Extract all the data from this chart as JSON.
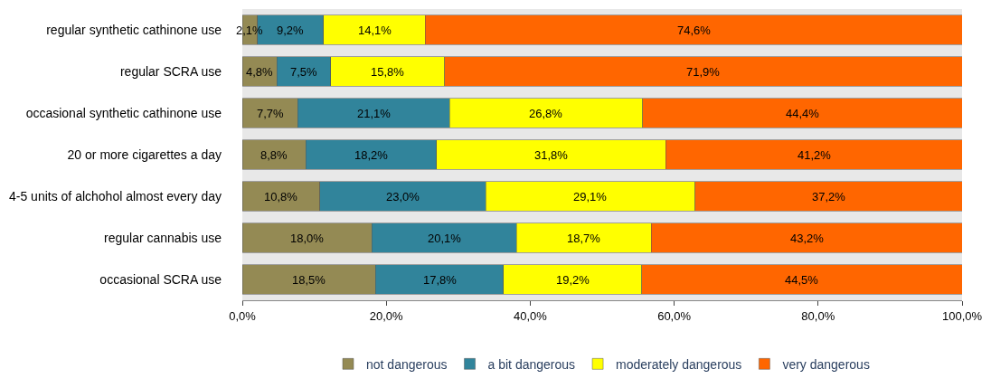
{
  "chart_data": {
    "type": "bar",
    "orientation": "horizontal",
    "stacked": true,
    "categories": [
      "regular synthetic cathinone use",
      "regular SCRA use",
      "occasional synthetic cathinone use",
      "20 or more cigarettes a day",
      "4-5 units of alchohol almost every day",
      "regular cannabis use",
      "occasional SCRA use"
    ],
    "series": [
      {
        "name": "not dangerous",
        "color": "#948a54",
        "values": [
          2.1,
          4.8,
          7.7,
          8.8,
          10.8,
          18.0,
          18.5
        ],
        "value_labels": [
          "2,1%",
          "4,8%",
          "7,7%",
          "8,8%",
          "10,8%",
          "18,0%",
          "18,5%"
        ]
      },
      {
        "name": "a bit dangerous",
        "color": "#31849b",
        "values": [
          9.2,
          7.5,
          21.1,
          18.2,
          23.0,
          20.1,
          17.8
        ],
        "value_labels": [
          "9,2%",
          "7,5%",
          "21,1%",
          "18,2%",
          "23,0%",
          "20,1%",
          "17,8%"
        ]
      },
      {
        "name": "moderately dangerous",
        "color": "#ffff00",
        "values": [
          14.1,
          15.8,
          26.8,
          31.8,
          29.1,
          18.7,
          19.2
        ],
        "value_labels": [
          "14,1%",
          "15,8%",
          "26,8%",
          "31,8%",
          "29,1%",
          "18,7%",
          "19,2%"
        ]
      },
      {
        "name": "very dangerous",
        "color": "#ff6600",
        "values": [
          74.6,
          71.9,
          44.4,
          41.2,
          37.2,
          43.2,
          44.5
        ],
        "value_labels": [
          "74,6%",
          "71,9%",
          "44,4%",
          "41,2%",
          "37,2%",
          "43,2%",
          "44,5%"
        ]
      }
    ],
    "xlim": [
      0,
      100
    ],
    "xticks": [
      {
        "value": 0,
        "label": "0,0%"
      },
      {
        "value": 20,
        "label": "20,0%"
      },
      {
        "value": 40,
        "label": "40,0%"
      },
      {
        "value": 60,
        "label": "60,0%"
      },
      {
        "value": 80,
        "label": "80,0%"
      },
      {
        "value": 100,
        "label": "100,0%"
      }
    ],
    "legend": "bottom",
    "grid": false
  }
}
